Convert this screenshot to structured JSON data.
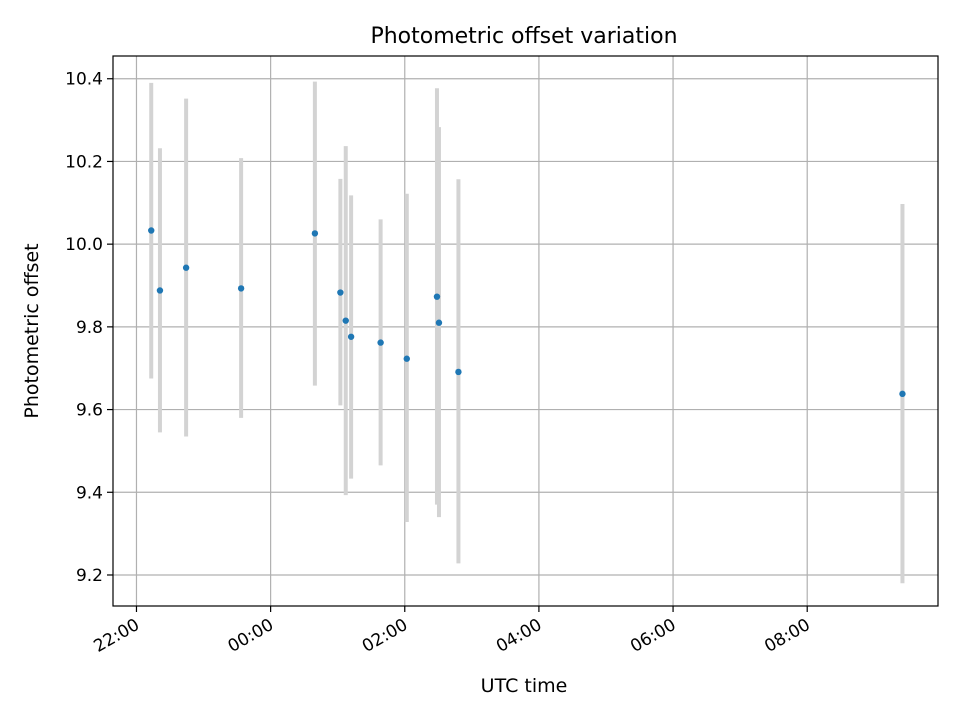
{
  "chart_data": {
    "type": "scatter",
    "title": "Photometric offset variation",
    "xlabel": "UTC time",
    "ylabel": "Photometric offset",
    "x_unit": "hours",
    "xlim": [
      -2.35,
      9.95
    ],
    "ylim": [
      9.125,
      10.455
    ],
    "xticks": [
      {
        "value": -2,
        "label": "22:00"
      },
      {
        "value": 0,
        "label": "00:00"
      },
      {
        "value": 2,
        "label": "02:00"
      },
      {
        "value": 4,
        "label": "04:00"
      },
      {
        "value": 6,
        "label": "06:00"
      },
      {
        "value": 8,
        "label": "08:00"
      }
    ],
    "yticks": [
      {
        "value": 9.2,
        "label": "9.2"
      },
      {
        "value": 9.4,
        "label": "9.4"
      },
      {
        "value": 9.6,
        "label": "9.6"
      },
      {
        "value": 9.8,
        "label": "9.8"
      },
      {
        "value": 10.0,
        "label": "10.0"
      },
      {
        "value": 10.2,
        "label": "10.2"
      },
      {
        "value": 10.4,
        "label": "10.4"
      }
    ],
    "grid": true,
    "legend": false,
    "points": [
      {
        "x": -1.78,
        "y": 10.033,
        "ylow": 9.675,
        "yhigh": 10.39
      },
      {
        "x": -1.65,
        "y": 9.888,
        "ylow": 9.545,
        "yhigh": 10.232
      },
      {
        "x": -1.26,
        "y": 9.943,
        "ylow": 9.535,
        "yhigh": 10.352
      },
      {
        "x": -0.44,
        "y": 9.893,
        "ylow": 9.58,
        "yhigh": 10.208
      },
      {
        "x": 0.66,
        "y": 10.026,
        "ylow": 9.658,
        "yhigh": 10.393
      },
      {
        "x": 1.04,
        "y": 9.883,
        "ylow": 9.61,
        "yhigh": 10.158
      },
      {
        "x": 1.12,
        "y": 9.815,
        "ylow": 9.393,
        "yhigh": 10.237
      },
      {
        "x": 1.2,
        "y": 9.776,
        "ylow": 9.433,
        "yhigh": 10.118
      },
      {
        "x": 1.64,
        "y": 9.762,
        "ylow": 9.465,
        "yhigh": 10.06
      },
      {
        "x": 2.03,
        "y": 9.723,
        "ylow": 9.328,
        "yhigh": 10.122
      },
      {
        "x": 2.48,
        "y": 9.873,
        "ylow": 9.37,
        "yhigh": 10.377
      },
      {
        "x": 2.51,
        "y": 9.81,
        "ylow": 9.34,
        "yhigh": 10.283
      },
      {
        "x": 2.8,
        "y": 9.691,
        "ylow": 9.228,
        "yhigh": 10.157
      },
      {
        "x": 9.42,
        "y": 9.638,
        "ylow": 9.18,
        "yhigh": 10.097
      }
    ],
    "colors": {
      "marker": "#1f77b4",
      "errorbar": "#d3d3d3",
      "grid": "#b0b0b0",
      "axes": "#000000"
    }
  }
}
